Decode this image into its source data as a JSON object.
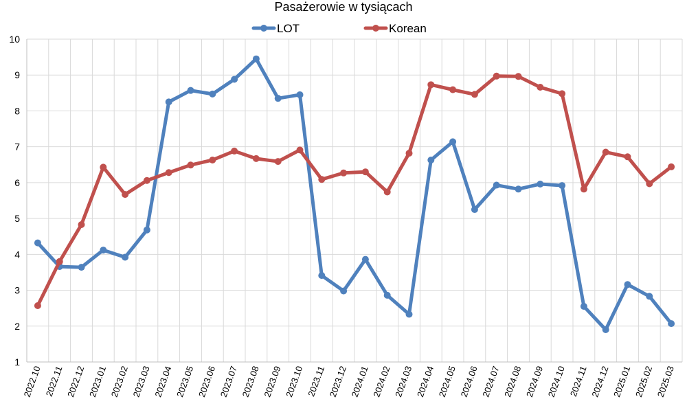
{
  "chart_data": {
    "type": "line",
    "title": "Pasażerowie w tysiącach",
    "xlabel": "",
    "ylabel": "",
    "ylim": [
      1,
      10
    ],
    "yticks": [
      1,
      2,
      3,
      4,
      5,
      6,
      7,
      8,
      9,
      10
    ],
    "grid": true,
    "legend": "top",
    "categories": [
      "2022.10",
      "2022.11",
      "2022.12",
      "2023.01",
      "2023.02",
      "2023.03",
      "2023.04",
      "2023.05",
      "2023.06",
      "2023.07",
      "2023.08",
      "2023.09",
      "2023.10",
      "2023.11",
      "2023.12",
      "2024.01",
      "2024.02",
      "2024.03",
      "2024.04",
      "2024.05",
      "2024.06",
      "2024.07",
      "2024.08",
      "2024.09",
      "2024.10",
      "2024.11",
      "2024.12",
      "2025.01",
      "2025.02",
      "2025.03"
    ],
    "series": [
      {
        "name": "LOT",
        "color": "#4F81BD",
        "values": [
          4.32,
          3.66,
          3.64,
          4.12,
          3.92,
          4.68,
          8.25,
          8.57,
          8.47,
          8.88,
          9.45,
          8.35,
          8.45,
          3.41,
          2.98,
          3.86,
          2.86,
          2.33,
          6.63,
          7.14,
          5.25,
          5.93,
          5.82,
          5.96,
          5.92,
          2.55,
          1.9,
          3.16,
          2.83,
          2.07
        ]
      },
      {
        "name": "Korean",
        "color": "#C0504D",
        "values": [
          2.57,
          3.8,
          4.83,
          6.43,
          5.67,
          6.06,
          6.28,
          6.49,
          6.63,
          6.88,
          6.67,
          6.59,
          6.91,
          6.09,
          6.27,
          6.3,
          5.74,
          6.82,
          8.73,
          8.59,
          8.46,
          8.97,
          8.96,
          8.66,
          8.48,
          5.82,
          6.85,
          6.72,
          5.97,
          6.44
        ]
      }
    ]
  }
}
